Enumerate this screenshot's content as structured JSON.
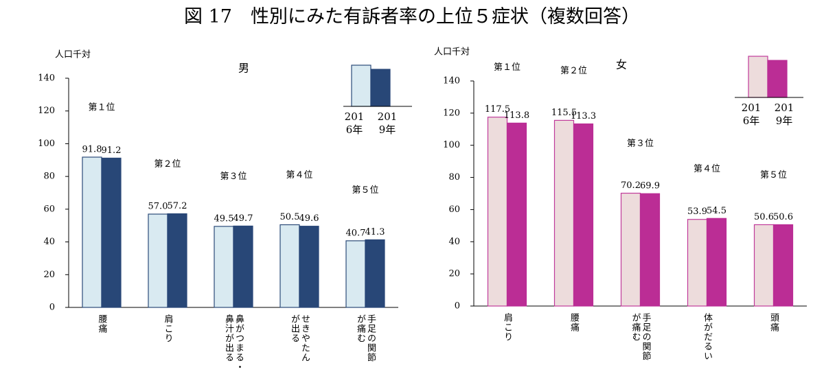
{
  "title": "図 17　性別にみた有訴者率の上位５症状（複数回答）",
  "chart_data": [
    {
      "type": "bar",
      "title": "男",
      "y_label": "人口千対",
      "categories": [
        "腰痛",
        "肩こり",
        "鼻がつまる・\n鼻汁が出る",
        "せきやたん\nが出る",
        "手足の関節\nが痛む"
      ],
      "ranks": [
        "第１位",
        "第２位",
        "第３位",
        "第４位",
        "第５位"
      ],
      "series": [
        {
          "name": "2016年",
          "color": "#d9eaf1",
          "edge": "#2b4a78",
          "values": [
            91.8,
            57.0,
            49.5,
            50.5,
            40.7
          ],
          "value_labels": [
            "91.8",
            "57.0",
            "49.5",
            "50.5",
            "40.7"
          ]
        },
        {
          "name": "2019年",
          "color": "#284777",
          "edge": "#284777",
          "values": [
            91.2,
            57.2,
            49.7,
            49.6,
            41.3
          ],
          "value_labels": [
            "91.2",
            "57.2",
            "49.7",
            "49.6",
            "41.3"
          ]
        }
      ],
      "ylim": [
        0,
        140
      ],
      "yticks": [
        0,
        20,
        40,
        60,
        80,
        100,
        120,
        140
      ]
    },
    {
      "type": "bar",
      "title": "女",
      "y_label": "人口千対",
      "categories": [
        "肩こり",
        "腰痛",
        "手足の関節\nが痛む",
        "体がだるい",
        "頭痛"
      ],
      "ranks": [
        "第１位",
        "第２位",
        "第３位",
        "第４位",
        "第５位"
      ],
      "series": [
        {
          "name": "2016年",
          "color": "#eddcdc",
          "edge": "#c0399a",
          "values": [
            117.5,
            115.5,
            70.2,
            53.9,
            50.6
          ],
          "value_labels": [
            "117.5",
            "115.5",
            "70.2",
            "53.9",
            "50.6"
          ]
        },
        {
          "name": "2019年",
          "color": "#bb2d95",
          "edge": "#bb2d95",
          "values": [
            113.8,
            113.3,
            69.9,
            54.5,
            50.6
          ],
          "value_labels": [
            "113.8",
            "113.3",
            "69.9",
            "54.5",
            "50.6"
          ]
        }
      ],
      "ylim": [
        0,
        140
      ],
      "yticks": [
        0,
        20,
        40,
        60,
        80,
        100,
        120,
        140
      ]
    }
  ]
}
